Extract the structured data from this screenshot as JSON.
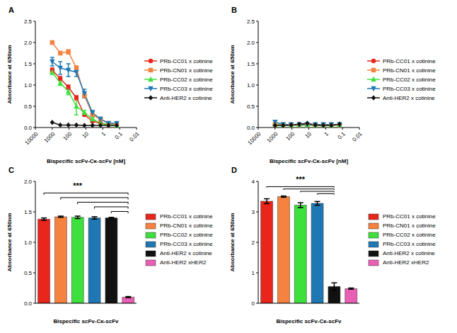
{
  "chart_data": [
    {
      "type": "line",
      "title": "A",
      "x_label": "Bispecific scFv-Cκ-scFv [nM]",
      "y_label": "Absorbance at 650nm",
      "log": "x",
      "grid": false,
      "legend": "right",
      "xlim": [
        10000,
        0.01
      ],
      "xticks": [
        10000,
        1000,
        100,
        10,
        1,
        0.1,
        0.01
      ],
      "ylim": [
        0,
        2.5
      ],
      "yticks": [
        {
          "value": 0,
          "label": "0.0"
        },
        {
          "value": 0.5,
          "label": "0.5"
        },
        {
          "value": 1,
          "label": "1.0"
        },
        {
          "value": 1.5,
          "label": "1.5"
        },
        {
          "value": 2,
          "label": "2.0"
        },
        {
          "value": 2.5,
          "label": "2.5"
        }
      ],
      "x": [
        1000,
        333,
        111,
        37,
        12.3,
        4.1,
        1.37,
        0.46,
        0.15
      ],
      "series": [
        {
          "name": "PRb-CC01 x cotinine",
          "color": "#e8261c",
          "marker": "circle",
          "values": [
            1.35,
            1.15,
            0.95,
            0.7,
            0.3,
            0.15,
            0.1,
            0.06,
            0.05
          ],
          "errors": [
            0.05,
            0.05,
            0.05,
            0.05,
            0.03,
            0.02,
            0.02,
            0.01,
            0.01
          ]
        },
        {
          "name": "PRb-CN01 x cotinine",
          "color": "#f5823f",
          "marker": "square",
          "values": [
            2.0,
            1.75,
            1.78,
            1.4,
            0.75,
            0.3,
            0.2,
            0.1,
            0.08
          ],
          "errors": [
            0.04,
            0.04,
            0.05,
            0.05,
            0.05,
            0.03,
            0.02,
            0.01,
            0.01
          ]
        },
        {
          "name": "PRb-CC02 x cotinine",
          "color": "#3ee03e",
          "marker": "triangle",
          "values": [
            1.3,
            1.05,
            0.85,
            0.5,
            0.35,
            0.2,
            0.1,
            0.08,
            0.05
          ],
          "errors": [
            0.05,
            0.06,
            0.08,
            0.2,
            0.05,
            0.03,
            0.02,
            0.01,
            0.01
          ]
        },
        {
          "name": "PRb-CC03 x cotinine",
          "color": "#1f78b4",
          "marker": "triangle-down",
          "values": [
            1.55,
            1.4,
            1.35,
            1.3,
            0.8,
            0.35,
            0.2,
            0.1,
            0.1
          ],
          "errors": [
            0.1,
            0.15,
            0.15,
            0.1,
            0.1,
            0.05,
            0.03,
            0.02,
            0.02
          ]
        },
        {
          "name": "Anti-HER2 x cotinine",
          "color": "#111111",
          "marker": "diamond",
          "values": [
            0.12,
            0.06,
            0.06,
            0.06,
            0.05,
            0.05,
            0.05,
            0.05,
            0.05
          ]
        }
      ]
    },
    {
      "type": "line",
      "title": "B",
      "x_label": "Bispecific scFv-Cκ-scFv [nM]",
      "y_label": "Absorbance at 650nm",
      "log": "x",
      "grid": false,
      "legend": "right",
      "xlim": [
        10000,
        0.01
      ],
      "xticks": [
        10000,
        1000,
        100,
        10,
        1,
        0.1,
        0.01
      ],
      "ylim": [
        0,
        2.5
      ],
      "yticks": [
        {
          "value": 0,
          "label": "0.0"
        },
        {
          "value": 0.5,
          "label": "0.5"
        },
        {
          "value": 1,
          "label": "1.0"
        },
        {
          "value": 1.5,
          "label": "1.5"
        },
        {
          "value": 2,
          "label": "2.0"
        },
        {
          "value": 2.5,
          "label": "2.5"
        }
      ],
      "x": [
        1000,
        333,
        111,
        37,
        12.3,
        4.1,
        1.37,
        0.46,
        0.15
      ],
      "series": [
        {
          "name": "PRb-CC01 x cotinine",
          "color": "#e8261c",
          "marker": "circle",
          "values": [
            0.06,
            0.06,
            0.06,
            0.06,
            0.06,
            0.06,
            0.06,
            0.06,
            0.06
          ]
        },
        {
          "name": "PRb-CN01 x cotinine",
          "color": "#f5823f",
          "marker": "square",
          "values": [
            0.08,
            0.07,
            0.06,
            0.06,
            0.06,
            0.06,
            0.06,
            0.06,
            0.06
          ]
        },
        {
          "name": "PRb-CC02 x cotinine",
          "color": "#3ee03e",
          "marker": "triangle",
          "values": [
            0.07,
            0.06,
            0.06,
            0.06,
            0.06,
            0.06,
            0.06,
            0.06,
            0.06
          ]
        },
        {
          "name": "PRb-CC03 x cotinine",
          "color": "#1f78b4",
          "marker": "triangle-down",
          "values": [
            0.13,
            0.07,
            0.07,
            0.07,
            0.07,
            0.07,
            0.07,
            0.07,
            0.07
          ]
        },
        {
          "name": "Anti-HER2 x cotinine",
          "color": "#111111",
          "marker": "diamond",
          "values": [
            0.05,
            0.05,
            0.06,
            0.08,
            0.1,
            0.06,
            0.05,
            0.05,
            0.08
          ]
        }
      ]
    },
    {
      "type": "bar",
      "title": "C",
      "x_label": "Bispecific scFv-Cκ-scFv",
      "y_label": "Absorbance at 650nm",
      "grid": false,
      "legend": "right",
      "tick_labels": "y",
      "ylim": [
        0,
        2
      ],
      "yticks": [
        {
          "value": 0,
          "label": "0.0"
        },
        {
          "value": 0.5,
          "label": "0.5"
        },
        {
          "value": 1,
          "label": "1.0"
        },
        {
          "value": 1.5,
          "label": "1.5"
        },
        {
          "value": 2,
          "label": "2.0"
        }
      ],
      "categories": [
        "PRb-CC01 x cotinine",
        "PRb-CN01 x cotinine",
        "PRb-CC02 x cotinine",
        "PRb-CC03 x cotinine",
        "Anti-HER2 x cotinine",
        "Anti-HER2 xHER2"
      ],
      "values": [
        1.38,
        1.42,
        1.41,
        1.4,
        1.4,
        0.1
      ],
      "errors": [
        0.02,
        0.01,
        0.02,
        0.02,
        0.01,
        0.01
      ],
      "colors": [
        "#e8261c",
        "#f5823f",
        "#3ee03e",
        "#1f78b4",
        "#111111",
        "#e85fb5"
      ],
      "annotation": "***",
      "comparisons": [
        [
          0,
          5
        ],
        [
          1,
          5
        ],
        [
          2,
          5
        ],
        [
          3,
          5
        ],
        [
          4,
          5
        ]
      ]
    },
    {
      "type": "bar",
      "title": "D",
      "x_label": "Bispecific scFv-Cκ-scFv",
      "y_label": "Absorbance at 650nm",
      "grid": false,
      "legend": "right",
      "tick_labels": "y",
      "ylim": [
        0,
        4
      ],
      "yticks": [
        0,
        1,
        2,
        3,
        4
      ],
      "categories": [
        "PRb-CC01 x cotinine",
        "PRb-CN01 x cotinine",
        "PRb-CC02 x cotinine",
        "PRb-CC03 x cotinine",
        "Anti-HER2 x cotinine",
        "Anti-HER2 xHER2"
      ],
      "values": [
        3.35,
        3.5,
        3.22,
        3.28,
        0.55,
        0.48
      ],
      "errors": [
        0.08,
        0.02,
        0.08,
        0.06,
        0.12,
        0.02
      ],
      "colors": [
        "#e8261c",
        "#f5823f",
        "#3ee03e",
        "#1f78b4",
        "#111111",
        "#e85fb5"
      ],
      "annotation": "***",
      "comparisons": [
        [
          0,
          4
        ],
        [
          1,
          4
        ],
        [
          2,
          4
        ],
        [
          3,
          4
        ]
      ]
    }
  ]
}
